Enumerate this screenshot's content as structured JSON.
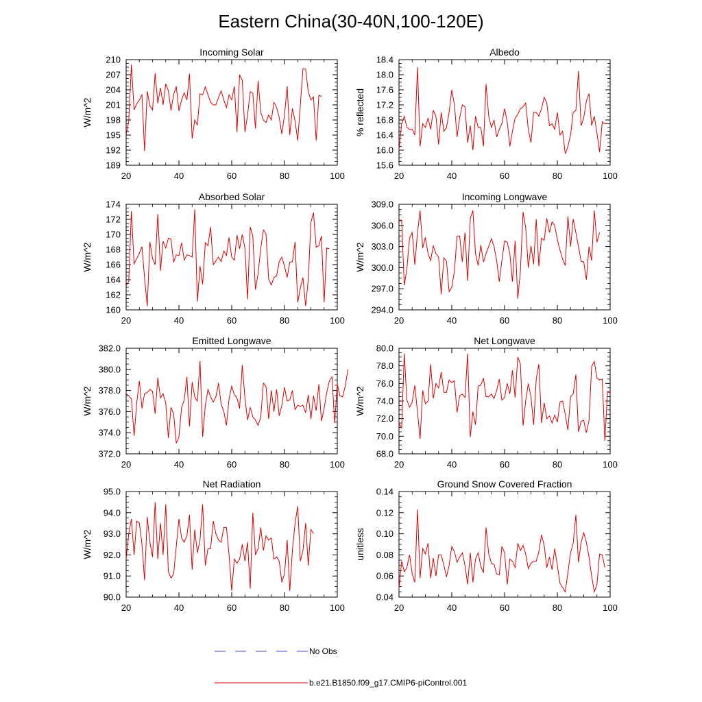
{
  "title": "Eastern China(30-40N,100-120E)",
  "legend": {
    "obs_label": "No Obs",
    "obs_color": "#4455cc",
    "model_label": "b.e21.B1850.f09_g17.CMIP6-piControl.001",
    "model_color": "#e00000"
  },
  "chart_data": [
    {
      "type": "line",
      "title": "Incoming Solar",
      "ylabel": "W/m^2",
      "xlim": [
        20,
        100
      ],
      "ylim": [
        189,
        210
      ],
      "yticks": [
        "189",
        "192",
        "195",
        "198",
        "201",
        "204",
        "207",
        "210"
      ],
      "xticks": [
        "20",
        "40",
        "60",
        "80",
        "100"
      ],
      "x_start": 20,
      "values": [
        195.0,
        197.8,
        209.0,
        200.0,
        201.2,
        202.0,
        203.0,
        191.8,
        203.7,
        200.8,
        200.0,
        207.3,
        201.3,
        204.4,
        201.0,
        205.2,
        203.8,
        199.9,
        203.0,
        204.7,
        199.8,
        202.0,
        203.4,
        202.0,
        207.2,
        194.3,
        198.0,
        197.0,
        203.2,
        203.0,
        204.6,
        203.0,
        201.5,
        201.0,
        201.0,
        202.5,
        203.8,
        202.0,
        200.5,
        203.0,
        202.0,
        204.7,
        195.6,
        207.0,
        205.9,
        195.6,
        199.0,
        203.6,
        203.3,
        196.3,
        205.8,
        199.5,
        198.0,
        197.5,
        199.0,
        198.0,
        201.5,
        200.5,
        198.5,
        195.2,
        199.0,
        204.7,
        195.0,
        200.3,
        197.8,
        193.9,
        201.0,
        208.2,
        208.1,
        203.6,
        202.0,
        202.6,
        193.9,
        202.9,
        202.7
      ]
    },
    {
      "type": "line",
      "title": "Albedo",
      "ylabel": "% reflected",
      "xlim": [
        20,
        100
      ],
      "ylim": [
        15.6,
        18.4
      ],
      "yticks": [
        "15.6",
        "16.0",
        "16.4",
        "16.8",
        "17.2",
        "17.6",
        "18.0",
        "18.4"
      ],
      "xticks": [
        "20",
        "40",
        "60",
        "80",
        "100"
      ],
      "x_start": 20,
      "values": [
        16.0,
        16.7,
        16.9,
        16.6,
        16.55,
        16.55,
        16.4,
        18.2,
        16.1,
        16.7,
        16.6,
        16.85,
        16.55,
        17.05,
        16.9,
        16.15,
        17.0,
        16.5,
        16.6,
        17.0,
        17.6,
        17.2,
        16.35,
        16.85,
        17.2,
        17.15,
        16.2,
        16.65,
        16.0,
        16.9,
        16.6,
        16.6,
        16.1,
        17.75,
        16.9,
        16.6,
        16.8,
        16.35,
        16.55,
        16.7,
        17.1,
        16.75,
        16.1,
        16.5,
        16.85,
        16.95,
        17.1,
        17.15,
        17.25,
        16.55,
        16.2,
        17.0,
        17.0,
        16.9,
        17.1,
        17.4,
        17.25,
        16.65,
        16.7,
        16.55,
        17.0,
        16.4,
        16.5,
        15.9,
        16.1,
        16.4,
        17.0,
        17.05,
        18.1,
        16.65,
        16.85,
        17.3,
        17.5,
        16.65,
        16.9,
        16.45,
        15.95,
        16.75,
        16.7,
        16.7
      ]
    },
    {
      "type": "line",
      "title": "Absorbed Solar",
      "ylabel": "W/m^2",
      "xlim": [
        20,
        100
      ],
      "ylim": [
        160,
        174
      ],
      "yticks": [
        "160",
        "162",
        "164",
        "166",
        "168",
        "170",
        "172",
        "174"
      ],
      "xticks": [
        "20",
        "40",
        "60",
        "80",
        "100"
      ],
      "x_start": 20,
      "values": [
        163.2,
        163.8,
        173.1,
        166.1,
        166.8,
        167.5,
        168.4,
        164.2,
        160.5,
        169.0,
        166.8,
        166.0,
        172.7,
        165.2,
        169.1,
        168.2,
        169.5,
        169.4,
        166.3,
        167.3,
        167.2,
        168.9,
        166.6,
        167.3,
        167.2,
        167.0,
        173.3,
        161.1,
        165.8,
        163.4,
        168.9,
        168.5,
        171.0,
        166.0,
        166.5,
        167.0,
        166.4,
        167.8,
        167.2,
        169.6,
        167.0,
        166.6,
        169.9,
        168.1,
        170.0,
        168.2,
        161.4,
        171.0,
        169.8,
        162.7,
        164.8,
        168.2,
        170.6,
        170.1,
        164.1,
        163.3,
        164.3,
        164.5,
        166.4,
        167.0,
        165.8,
        164.3,
        166.3,
        166.4,
        169.0,
        161.0,
        162.9,
        164.3,
        160.5,
        164.0,
        171.6,
        172.9,
        168.3,
        168.5,
        169.8,
        161.0,
        168.2,
        168.1
      ]
    },
    {
      "type": "line",
      "title": "Incoming Longwave",
      "ylabel": "W/m^2",
      "xlim": [
        20,
        100
      ],
      "ylim": [
        294.0,
        309.0
      ],
      "yticks": [
        "294.0",
        "297.0",
        "300.0",
        "303.0",
        "306.0",
        "309.0"
      ],
      "xticks": [
        "20",
        "40",
        "60",
        "80",
        "100"
      ],
      "x_start": 20,
      "values": [
        306.6,
        306.7,
        297.5,
        299.8,
        304.2,
        305.0,
        300.4,
        305.0,
        308.1,
        302.8,
        304.3,
        302.0,
        301.0,
        303.1,
        302.0,
        301.5,
        296.2,
        301.4,
        300.9,
        296.6,
        297.2,
        299.5,
        304.5,
        304.5,
        300.8,
        305.0,
        298.1,
        307.0,
        308.1,
        302.0,
        300.3,
        303.2,
        300.8,
        302.0,
        303.0,
        304.1,
        303.0,
        301.0,
        298.0,
        301.0,
        303.8,
        303.6,
        302.0,
        298.0,
        303.8,
        295.6,
        299.5,
        307.9,
        305.7,
        300.0,
        303.1,
        300.5,
        306.9,
        300.2,
        304.2,
        303.9,
        307.0,
        305.0,
        306.5,
        306.0,
        304.0,
        302.5,
        301.2,
        300.3,
        307.3,
        303.0,
        306.9,
        305.0,
        303.0,
        300.9,
        300.8,
        298.3,
        303.0,
        301.0,
        308.1,
        303.6,
        305.0
      ]
    },
    {
      "type": "line",
      "title": "Emitted Longwave",
      "ylabel": "W/m^2",
      "xlim": [
        20,
        100
      ],
      "ylim": [
        372.0,
        382.0
      ],
      "yticks": [
        "372.0",
        "374.0",
        "376.0",
        "378.0",
        "380.0",
        "382.0"
      ],
      "xticks": [
        "20",
        "40",
        "60",
        "80",
        "100"
      ],
      "x_start": 20,
      "values": [
        377.7,
        377.5,
        377.2,
        373.7,
        376.8,
        378.9,
        376.3,
        377.7,
        377.8,
        378.1,
        377.9,
        375.8,
        379.2,
        377.3,
        377.7,
        376.8,
        373.5,
        376.4,
        375.8,
        373.0,
        373.6,
        376.4,
        377.1,
        379.3,
        374.6,
        378.8,
        377.4,
        377.0,
        380.8,
        373.6,
        376.6,
        378.1,
        377.4,
        376.9,
        377.4,
        378.7,
        376.7,
        376.0,
        374.7,
        377.2,
        378.4,
        377.6,
        377.3,
        376.3,
        380.4,
        377.3,
        375.2,
        376.4,
        375.5,
        375.2,
        374.7,
        375.5,
        378.7,
        378.4,
        375.3,
        378.0,
        376.0,
        378.1,
        375.6,
        376.6,
        378.3,
        377.0,
        377.1,
        378.0,
        376.2,
        376.6,
        376.5,
        376.6,
        375.9,
        377.6,
        375.3,
        377.5,
        376.1,
        378.6,
        375.1,
        376.3,
        377.8,
        378.9,
        379.3,
        374.9,
        378.6,
        377.5,
        377.4,
        378.4,
        380.0
      ]
    },
    {
      "type": "line",
      "title": "Net Longwave",
      "ylabel": "W/m^2",
      "xlim": [
        20,
        100
      ],
      "ylim": [
        68.0,
        80.0
      ],
      "yticks": [
        "68.0",
        "70.0",
        "72.0",
        "74.0",
        "76.0",
        "78.0",
        "80.0"
      ],
      "xticks": [
        "20",
        "40",
        "60",
        "80",
        "100"
      ],
      "x_start": 20,
      "values": [
        71.5,
        70.9,
        79.4,
        74.1,
        73.3,
        73.9,
        75.8,
        72.7,
        69.7,
        75.2,
        73.7,
        74.0,
        78.2,
        74.3,
        76.0,
        75.5,
        77.3,
        75.0,
        75.0,
        76.4,
        76.1,
        76.3,
        72.7,
        74.6,
        74.8,
        74.4,
        79.4,
        69.9,
        72.8,
        71.3,
        75.7,
        75.8,
        76.6,
        74.5,
        74.5,
        74.8,
        74.3,
        75.2,
        76.5,
        74.1,
        74.4,
        76.0,
        74.8,
        77.5,
        74.4,
        79.0,
        78.2,
        71.2,
        74.0,
        76.0,
        74.5,
        71.3,
        76.5,
        78.2,
        71.5,
        73.8,
        72.0,
        72.3,
        71.5,
        72.4,
        71.6,
        73.9,
        74.0,
        72.5,
        70.7,
        74.5,
        74.8,
        77.0,
        70.5,
        71.7,
        71.8,
        70.4,
        71.8,
        77.9,
        78.5,
        76.6,
        76.4,
        76.5,
        69.5,
        75.1,
        75.0
      ]
    },
    {
      "type": "line",
      "title": "Net Radiation",
      "ylabel": "W/m^2",
      "xlim": [
        20,
        100
      ],
      "ylim": [
        90.0,
        95.0
      ],
      "yticks": [
        "90.0",
        "91.0",
        "92.0",
        "93.0",
        "94.0",
        "95.0"
      ],
      "xticks": [
        "20",
        "40",
        "60",
        "80",
        "100"
      ],
      "x_start": 20,
      "values": [
        91.8,
        93.0,
        93.7,
        92.0,
        93.6,
        93.5,
        92.5,
        90.8,
        93.8,
        92.6,
        91.9,
        94.5,
        91.8,
        93.5,
        92.0,
        94.4,
        91.2,
        90.9,
        91.1,
        92.4,
        93.7,
        92.8,
        92.6,
        92.9,
        93.9,
        91.3,
        93.2,
        92.1,
        92.7,
        94.4,
        91.5,
        92.3,
        92.3,
        93.6,
        93.0,
        92.7,
        92.6,
        93.3,
        93.3,
        92.0,
        90.3,
        91.8,
        91.6,
        91.8,
        92.5,
        91.7,
        92.6,
        90.4,
        94.0,
        92.0,
        92.3,
        93.3,
        92.2,
        92.9,
        92.7,
        92.8,
        91.8,
        91.9,
        91.7,
        90.7,
        91.1,
        92.7,
        90.3,
        92.2,
        93.5,
        94.3,
        91.7,
        92.2,
        93.5,
        91.5,
        93.2,
        93.0
      ]
    },
    {
      "type": "line",
      "title": "Ground Snow Covered Fraction",
      "ylabel": "unitless",
      "xlim": [
        20,
        100
      ],
      "ylim": [
        0.04,
        0.14
      ],
      "yticks": [
        "0.04",
        "0.06",
        "0.08",
        "0.10",
        "0.12",
        "0.14"
      ],
      "xticks": [
        "20",
        "40",
        "60",
        "80",
        "100"
      ],
      "x_start": 20,
      "values": [
        0.048,
        0.074,
        0.064,
        0.068,
        0.08,
        0.062,
        0.054,
        0.123,
        0.058,
        0.086,
        0.081,
        0.091,
        0.058,
        0.077,
        0.06,
        0.08,
        0.08,
        0.07,
        0.059,
        0.07,
        0.088,
        0.083,
        0.073,
        0.078,
        0.082,
        0.07,
        0.052,
        0.082,
        0.054,
        0.076,
        0.082,
        0.069,
        0.063,
        0.106,
        0.081,
        0.072,
        0.071,
        0.062,
        0.061,
        0.088,
        0.082,
        0.052,
        0.076,
        0.074,
        0.068,
        0.091,
        0.084,
        0.089,
        0.081,
        0.067,
        0.072,
        0.074,
        0.074,
        0.083,
        0.099,
        0.089,
        0.068,
        0.078,
        0.066,
        0.086,
        0.07,
        0.053,
        0.049,
        0.045,
        0.063,
        0.082,
        0.091,
        0.118,
        0.073,
        0.092,
        0.101,
        0.092,
        0.078,
        0.06,
        0.045,
        0.052,
        0.081,
        0.08,
        0.068
      ]
    }
  ]
}
